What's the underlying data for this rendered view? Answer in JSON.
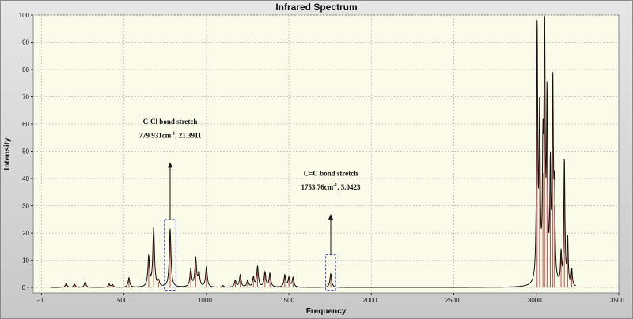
{
  "chart_data": {
    "type": "line",
    "title": "Infrared Spectrum",
    "xlabel": "Frequency",
    "ylabel": "Intensity",
    "xlim": [
      -50,
      3500
    ],
    "ylim": [
      -2,
      100
    ],
    "x_ticks": [
      0,
      500,
      1000,
      1500,
      2000,
      2500,
      3000,
      3500
    ],
    "x_tick_labels": [
      "0",
      "500",
      "1000",
      "1500",
      "2000",
      "2500",
      "3000",
      "3500"
    ],
    "y_ticks": [
      0,
      10,
      20,
      30,
      40,
      50,
      60,
      70,
      80,
      90,
      100
    ],
    "y_tick_labels": [
      "0",
      "10",
      "20",
      "30",
      "40",
      "50",
      "60",
      "70",
      "80",
      "90",
      "100"
    ],
    "grid": true,
    "colors": {
      "plot_bg": "#fbfbe9",
      "spectrum_line": "#111111",
      "stick_color": "#c0504d",
      "grid": "#cccccc",
      "highlight_box": "#4a4acc"
    },
    "peaks": [
      {
        "x": 150,
        "y": 1.5
      },
      {
        "x": 200,
        "y": 1.2
      },
      {
        "x": 265,
        "y": 2.0
      },
      {
        "x": 410,
        "y": 1.2
      },
      {
        "x": 430,
        "y": 1.0
      },
      {
        "x": 530,
        "y": 3.5
      },
      {
        "x": 650,
        "y": 11.0
      },
      {
        "x": 680,
        "y": 21.5
      },
      {
        "x": 710,
        "y": 2.0
      },
      {
        "x": 779.931,
        "y": 21.3911
      },
      {
        "x": 905,
        "y": 6.5
      },
      {
        "x": 935,
        "y": 10.5
      },
      {
        "x": 955,
        "y": 5.0
      },
      {
        "x": 1000,
        "y": 7.5
      },
      {
        "x": 1100,
        "y": 0.6
      },
      {
        "x": 1175,
        "y": 2.5
      },
      {
        "x": 1205,
        "y": 4.5
      },
      {
        "x": 1250,
        "y": 2.5
      },
      {
        "x": 1285,
        "y": 3.5
      },
      {
        "x": 1310,
        "y": 7.5
      },
      {
        "x": 1355,
        "y": 5.5
      },
      {
        "x": 1385,
        "y": 5.0
      },
      {
        "x": 1475,
        "y": 4.5
      },
      {
        "x": 1500,
        "y": 3.5
      },
      {
        "x": 1525,
        "y": 3.5
      },
      {
        "x": 1753.76,
        "y": 5.0423
      },
      {
        "x": 3005,
        "y": 94.0
      },
      {
        "x": 3020,
        "y": 60.0
      },
      {
        "x": 3040,
        "y": 42.0
      },
      {
        "x": 3050,
        "y": 97.0
      },
      {
        "x": 3065,
        "y": 65.0
      },
      {
        "x": 3085,
        "y": 40.0
      },
      {
        "x": 3100,
        "y": 71.0
      },
      {
        "x": 3110,
        "y": 30.0
      },
      {
        "x": 3150,
        "y": 11.0
      },
      {
        "x": 3170,
        "y": 46.0
      },
      {
        "x": 3190,
        "y": 17.0
      },
      {
        "x": 3215,
        "y": 6.0
      }
    ],
    "annotations": [
      {
        "line1": "C-Cl bond stretch",
        "line2_value": "779.931cm",
        "line2_sup": "-1",
        "line2_rest": ", 21.3911",
        "x": 779.931,
        "y": 21.3911,
        "box_x": [
          745,
          815
        ],
        "box_y": [
          -1,
          25
        ],
        "arrow_to_y": 46,
        "text_y": [
          60,
          55
        ]
      },
      {
        "line1": "C=C bond stretch",
        "line2_value": "1753.76cm",
        "line2_sup": "-1",
        "line2_rest": ", 5.0423",
        "x": 1753.76,
        "y": 5.0423,
        "box_x": [
          1723,
          1783
        ],
        "box_y": [
          -1,
          12
        ],
        "arrow_to_y": 27,
        "text_y": [
          41,
          36
        ]
      }
    ]
  }
}
